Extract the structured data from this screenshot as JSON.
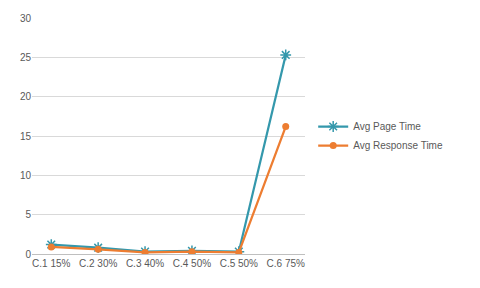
{
  "chart_data": {
    "type": "line",
    "categories": [
      "C.1 15%",
      "C.2 30%",
      "C.3 40%",
      "C.4 50%",
      "C.5 50%",
      "C.6 75%"
    ],
    "series": [
      {
        "name": "Avg Page Time",
        "color": "#3498ac",
        "marker": "asterisk",
        "values": [
          1.2,
          0.8,
          0.3,
          0.4,
          0.3,
          25.3
        ]
      },
      {
        "name": "Avg Response Time",
        "color": "#ed7d31",
        "marker": "circle",
        "values": [
          0.9,
          0.6,
          0.2,
          0.3,
          0.2,
          16.2
        ]
      }
    ],
    "ylim": [
      0,
      30
    ],
    "yticks": [
      0,
      5,
      10,
      15,
      20,
      25,
      30
    ],
    "grid": true,
    "legend": "right"
  }
}
